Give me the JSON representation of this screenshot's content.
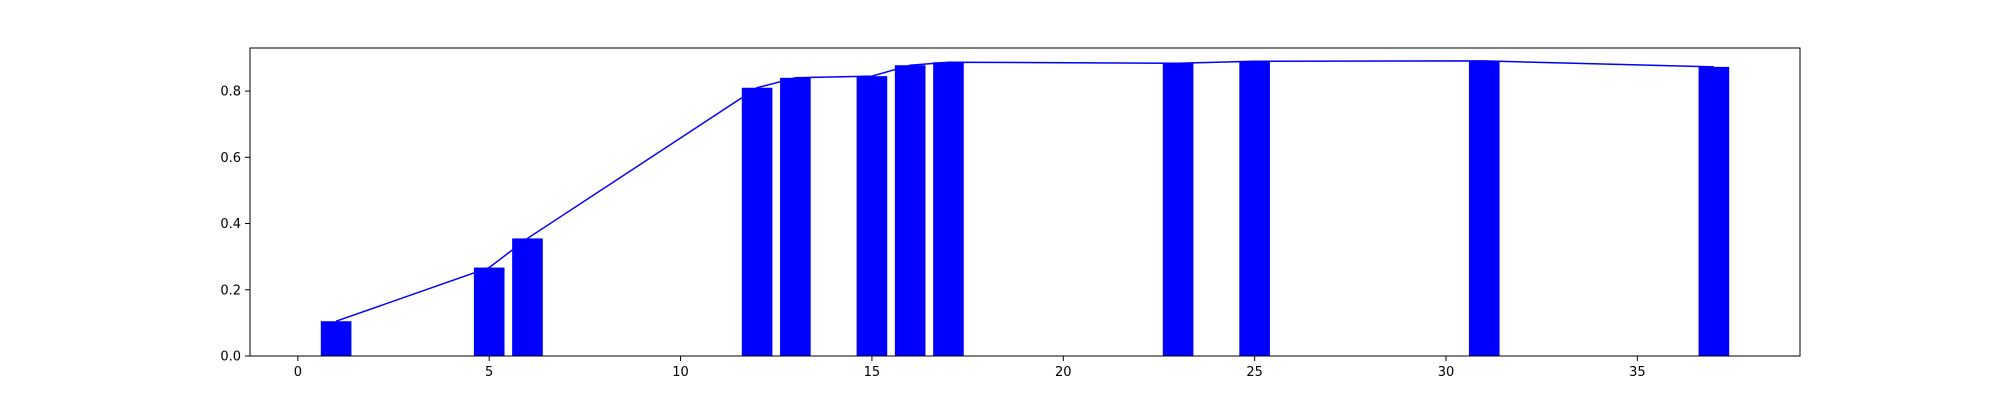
{
  "chart_data": {
    "type": "bar",
    "title": "",
    "xlabel": "",
    "ylabel": "",
    "xlim": [
      -1.25,
      39.25
    ],
    "ylim": [
      0,
      0.93
    ],
    "grid": false,
    "x_ticks": [
      0,
      5,
      10,
      15,
      20,
      25,
      30,
      35
    ],
    "x_tick_labels": [
      "0",
      "5",
      "10",
      "15",
      "20",
      "25",
      "30",
      "35"
    ],
    "y_ticks": [
      0.0,
      0.2,
      0.4,
      0.6,
      0.8
    ],
    "y_tick_labels": [
      "0.0",
      "0.2",
      "0.4",
      "0.6",
      "0.8"
    ],
    "bar_width": 0.8,
    "bar_color": "#0000ff",
    "line_color": "#0000ff",
    "x": [
      1,
      5,
      6,
      12,
      13,
      15,
      16,
      17,
      23,
      25,
      31,
      37
    ],
    "series": [
      {
        "type": "bar",
        "values": [
          0.105,
          0.267,
          0.355,
          0.81,
          0.84,
          0.845,
          0.878,
          0.887,
          0.884,
          0.89,
          0.891,
          0.873
        ]
      },
      {
        "type": "line",
        "values": [
          0.105,
          0.267,
          0.355,
          0.81,
          0.84,
          0.845,
          0.878,
          0.887,
          0.884,
          0.89,
          0.891,
          0.873
        ]
      }
    ]
  }
}
